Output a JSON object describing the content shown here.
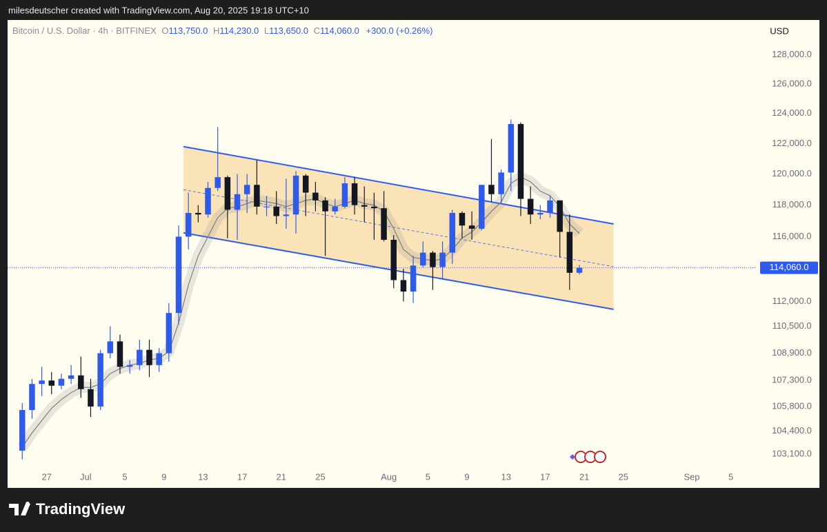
{
  "header": {
    "text": "milesdeutscher created with TradingView.com, Aug 20, 2025 19:18 UTC+10"
  },
  "legend": {
    "symbol": "Bitcoin / U.S. Dollar · 4h · BITFINEX",
    "open": {
      "label": "O",
      "value": "113,750.0"
    },
    "high": {
      "label": "H",
      "value": "114,230.0"
    },
    "low": {
      "label": "L",
      "value": "113,650.0"
    },
    "close": {
      "label": "C",
      "value": "114,060.0"
    },
    "change": "+300.0 (+0.26%)"
  },
  "footer": {
    "brand": "TradingView"
  },
  "chart_data": {
    "type": "candlestick",
    "currency": "USD",
    "yscale": "log",
    "up_color": "#2f5bea",
    "down_color": "#131722",
    "x": [
      "2025-06-24",
      "2025-06-25",
      "2025-06-26",
      "2025-06-27",
      "2025-06-28",
      "2025-06-29",
      "2025-06-30",
      "2025-07-01",
      "2025-07-02",
      "2025-07-03",
      "2025-07-04",
      "2025-07-05",
      "2025-07-06",
      "2025-07-07",
      "2025-07-08",
      "2025-07-09",
      "2025-07-10",
      "2025-07-11",
      "2025-07-12",
      "2025-07-13",
      "2025-07-14",
      "2025-07-15",
      "2025-07-16",
      "2025-07-17",
      "2025-07-18",
      "2025-07-19",
      "2025-07-20",
      "2025-07-21",
      "2025-07-22",
      "2025-07-23",
      "2025-07-24",
      "2025-07-25",
      "2025-07-26",
      "2025-07-27",
      "2025-07-28",
      "2025-07-29",
      "2025-07-30",
      "2025-07-31",
      "2025-08-01",
      "2025-08-02",
      "2025-08-03",
      "2025-08-04",
      "2025-08-05",
      "2025-08-06",
      "2025-08-07",
      "2025-08-08",
      "2025-08-09",
      "2025-08-10",
      "2025-08-11",
      "2025-08-12",
      "2025-08-13",
      "2025-08-14",
      "2025-08-15",
      "2025-08-16",
      "2025-08-17",
      "2025-08-18",
      "2025-08-19",
      "2025-08-20"
    ],
    "open": [
      103300,
      105600,
      107100,
      107300,
      107000,
      107400,
      107600,
      106800,
      105800,
      108900,
      109600,
      108100,
      108200,
      109100,
      108200,
      108900,
      111300,
      116000,
      117500,
      117400,
      119100,
      119800,
      117700,
      118700,
      119300,
      117900,
      117900,
      117300,
      117400,
      119900,
      118800,
      118300,
      117600,
      117900,
      119400,
      118000,
      117900,
      117800,
      115800,
      113300,
      112600,
      114200,
      115000,
      114100,
      115000,
      117500,
      116700,
      116500,
      119300,
      118700,
      120100,
      123300,
      118400,
      117400,
      117500,
      118300,
      116300,
      113750
    ],
    "high": [
      106000,
      107400,
      108100,
      107800,
      107700,
      108200,
      108700,
      107400,
      109100,
      110500,
      110000,
      108500,
      109700,
      109700,
      109200,
      111900,
      116700,
      118800,
      118000,
      119500,
      123100,
      119900,
      120000,
      120000,
      120900,
      118600,
      118900,
      119700,
      120200,
      120000,
      119500,
      118500,
      118400,
      119800,
      119800,
      119200,
      118800,
      118900,
      116100,
      114000,
      114800,
      115700,
      115100,
      115700,
      117700,
      117600,
      117600,
      119300,
      122300,
      120300,
      123600,
      123400,
      119200,
      118000,
      118600,
      118300,
      117400,
      114230
    ],
    "low": [
      102800,
      105100,
      106400,
      106500,
      106800,
      107100,
      106300,
      105200,
      105600,
      108600,
      107700,
      107700,
      107900,
      107500,
      107800,
      108400,
      110600,
      115200,
      116900,
      117200,
      118900,
      115900,
      115800,
      117500,
      117400,
      117300,
      116800,
      116500,
      116200,
      117300,
      117600,
      114800,
      117400,
      117800,
      117400,
      116900,
      115800,
      115700,
      112800,
      112000,
      111900,
      114100,
      112700,
      113400,
      114300,
      115900,
      115800,
      116400,
      118200,
      118100,
      118900,
      117300,
      116800,
      117100,
      117200,
      114700,
      112700,
      113650
    ],
    "close": [
      105600,
      107100,
      107300,
      107000,
      107400,
      107600,
      106800,
      105800,
      108900,
      109600,
      108100,
      108200,
      109100,
      108200,
      108900,
      111300,
      116000,
      117500,
      117400,
      119100,
      119800,
      117700,
      118700,
      119300,
      117900,
      117900,
      117300,
      117400,
      119900,
      118800,
      118300,
      117600,
      117900,
      119400,
      118000,
      117900,
      117800,
      115800,
      113300,
      112600,
      114200,
      115000,
      114100,
      115000,
      117500,
      116700,
      116500,
      119300,
      118700,
      120100,
      123300,
      118400,
      117400,
      117500,
      118300,
      116300,
      113750,
      114060
    ],
    "moving_average": {
      "color": "#7d7d7d",
      "values": [
        103500,
        104300,
        105000,
        105700,
        106200,
        106600,
        106900,
        106900,
        107100,
        107700,
        108000,
        108200,
        108300,
        108500,
        108600,
        109000,
        110700,
        113000,
        114800,
        116000,
        117200,
        117800,
        117900,
        118100,
        118300,
        118200,
        118100,
        117900,
        118100,
        118300,
        118400,
        118100,
        117900,
        118100,
        118300,
        118100,
        118000,
        117600,
        116500,
        115200,
        114700,
        114600,
        114500,
        114600,
        115200,
        115900,
        116300,
        116900,
        117600,
        118200,
        119400,
        119800,
        119500,
        118900,
        118600,
        117900,
        116800,
        116200
      ]
    },
    "channel": {
      "start": "2025-07-11",
      "end": "2025-08-24",
      "upper": [
        121800,
        116800
      ],
      "lower": [
        116240,
        111520
      ],
      "color": "#2f5bea",
      "fill": "#fbe3b8"
    },
    "last_price": {
      "value": 114060,
      "label": "114,060.0",
      "color": "#2f5bea"
    },
    "xlim": [
      "2025-06-23",
      "2025-09-07"
    ],
    "xticks": [
      {
        "value": "2025-06-27",
        "label": "27"
      },
      {
        "value": "2025-07-01",
        "label": "Jul"
      },
      {
        "value": "2025-07-05",
        "label": "5"
      },
      {
        "value": "2025-07-09",
        "label": "9"
      },
      {
        "value": "2025-07-13",
        "label": "13"
      },
      {
        "value": "2025-07-17",
        "label": "17"
      },
      {
        "value": "2025-07-21",
        "label": "21"
      },
      {
        "value": "2025-07-25",
        "label": "25"
      },
      {
        "value": "2025-08-01",
        "label": "Aug"
      },
      {
        "value": "2025-08-05",
        "label": "5"
      },
      {
        "value": "2025-08-09",
        "label": "9"
      },
      {
        "value": "2025-08-13",
        "label": "13"
      },
      {
        "value": "2025-08-17",
        "label": "17"
      },
      {
        "value": "2025-08-21",
        "label": "21"
      },
      {
        "value": "2025-08-25",
        "label": "25"
      },
      {
        "value": "2025-09-01",
        "label": "Sep"
      },
      {
        "value": "2025-09-05",
        "label": "5"
      }
    ],
    "ylim": [
      102300,
      130400
    ],
    "yticks": [
      {
        "value": 103100,
        "label": "103,100.0"
      },
      {
        "value": 104400,
        "label": "104,400.0"
      },
      {
        "value": 105800,
        "label": "105,800.0"
      },
      {
        "value": 107300,
        "label": "107,300.0"
      },
      {
        "value": 108900,
        "label": "108,900.0"
      },
      {
        "value": 110500,
        "label": "110,500.0"
      },
      {
        "value": 112000,
        "label": "112,000.0"
      },
      {
        "value": 116000,
        "label": "116,000.0"
      },
      {
        "value": 118000,
        "label": "118,000.0"
      },
      {
        "value": 120000,
        "label": "120,000.0"
      },
      {
        "value": 122000,
        "label": "122,000.0"
      },
      {
        "value": 124000,
        "label": "124,000.0"
      },
      {
        "value": 126000,
        "label": "126,000.0"
      },
      {
        "value": 128000,
        "label": "128,000.0"
      }
    ]
  }
}
